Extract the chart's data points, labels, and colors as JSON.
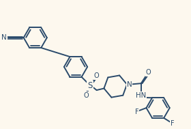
{
  "background_color": "#fdf8ee",
  "line_color": "#2a4a6b",
  "line_width": 1.4,
  "fs": 7.0,
  "figsize": [
    2.8,
    1.89
  ],
  "dpi": 100,
  "xlim": [
    0,
    10
  ],
  "ylim": [
    0,
    6.75
  ]
}
